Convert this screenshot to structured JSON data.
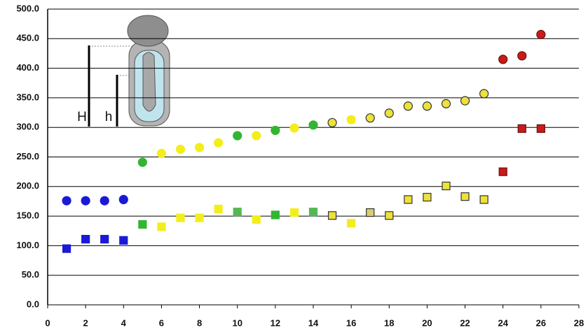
{
  "chart_data": {
    "type": "scatter",
    "x": [
      1,
      2,
      3,
      4,
      5,
      6,
      7,
      8,
      9,
      10,
      11,
      12,
      13,
      14,
      15,
      16,
      17,
      18,
      19,
      20,
      21,
      22,
      23,
      24,
      25,
      26
    ],
    "series": [
      {
        "marker": "circle",
        "values": [
          176,
          176,
          176,
          178,
          241,
          256,
          263,
          266,
          274,
          286,
          286,
          295,
          299,
          304,
          308,
          313,
          316,
          324,
          336,
          336,
          340,
          345,
          357,
          415,
          421,
          457
        ],
        "colors": [
          "#1a1ad6",
          "#1a1ad6",
          "#1a1ad6",
          "#1a1ad6",
          "#33b533",
          "#f2ee1c",
          "#f2ee1c",
          "#f2ee1c",
          "#f2ee1c",
          "#33b533",
          "#f2ee1c",
          "#33b533",
          "#f2ee1c",
          "#33b533",
          "#ece23a",
          "#f2ee1c",
          "#ece23a",
          "#ece23a",
          "#ece23a",
          "#ece23a",
          "#ece23a",
          "#ece23a",
          "#ece23a",
          "#cc1a1a",
          "#cc1a1a",
          "#cc1a1a"
        ],
        "edgecolors": [
          "#1a1ad6",
          "#1a1ad6",
          "#1a1ad6",
          "#1a1ad6",
          "#33b533",
          "#f2ee1c",
          "#f2ee1c",
          "#f2ee1c",
          "#f2ee1c",
          "#33b533",
          "#f2ee1c",
          "#33b533",
          "#f2ee1c",
          "#33b533",
          "#333333",
          "#f2ee1c",
          "#333333",
          "#333333",
          "#333333",
          "#333333",
          "#333333",
          "#333333",
          "#333333",
          "#661010",
          "#661010",
          "#661010"
        ]
      },
      {
        "marker": "square",
        "values": [
          95,
          111,
          111,
          109,
          136,
          132,
          147,
          147,
          162,
          157,
          144,
          152,
          156,
          157,
          151,
          138,
          156,
          151,
          178,
          182,
          201,
          183,
          178,
          225,
          298,
          298
        ],
        "colors": [
          "#1a1ad6",
          "#1a1ad6",
          "#1a1ad6",
          "#1a1ad6",
          "#33b533",
          "#f2ee1c",
          "#f2ee1c",
          "#f2ee1c",
          "#f2ee1c",
          "#55b855",
          "#f2ee1c",
          "#33b533",
          "#f2ee1c",
          "#55b855",
          "#ece23a",
          "#f2ee1c",
          "#d8d070",
          "#ece23a",
          "#ece23a",
          "#ece23a",
          "#ece23a",
          "#ece23a",
          "#ece23a",
          "#cc1a1a",
          "#cc1a1a",
          "#cc1a1a"
        ],
        "edgecolors": [
          "#1a1ad6",
          "#1a1ad6",
          "#1a1ad6",
          "#1a1ad6",
          "#33b533",
          "#f2ee1c",
          "#f2ee1c",
          "#f2ee1c",
          "#f2ee1c",
          "#55b855",
          "#f2ee1c",
          "#33b533",
          "#f2ee1c",
          "#55b855",
          "#333333",
          "#f2ee1c",
          "#333333",
          "#333333",
          "#333333",
          "#333333",
          "#333333",
          "#333333",
          "#333333",
          "#661010",
          "#661010",
          "#661010"
        ]
      }
    ],
    "xlim": [
      0,
      28
    ],
    "xticks": [
      0,
      2,
      4,
      6,
      8,
      10,
      12,
      14,
      16,
      18,
      20,
      22,
      24,
      26,
      28
    ],
    "ylim": [
      0,
      500
    ],
    "yticks": [
      {
        "value": 0,
        "label": "0.0"
      },
      {
        "value": 50,
        "label": "50.0"
      },
      {
        "value": 100,
        "label": "100.0"
      },
      {
        "value": 150,
        "label": "150.0"
      },
      {
        "value": 200,
        "label": "200.0"
      },
      {
        "value": 250,
        "label": "250.0"
      },
      {
        "value": 300,
        "label": "300.0"
      },
      {
        "value": 350,
        "label": "350.0"
      },
      {
        "value": 400,
        "label": "400.0"
      },
      {
        "value": 450,
        "label": "450.0"
      },
      {
        "value": 500,
        "label": "500.0"
      }
    ],
    "grid": true,
    "annotations": [
      "H",
      "h"
    ]
  }
}
